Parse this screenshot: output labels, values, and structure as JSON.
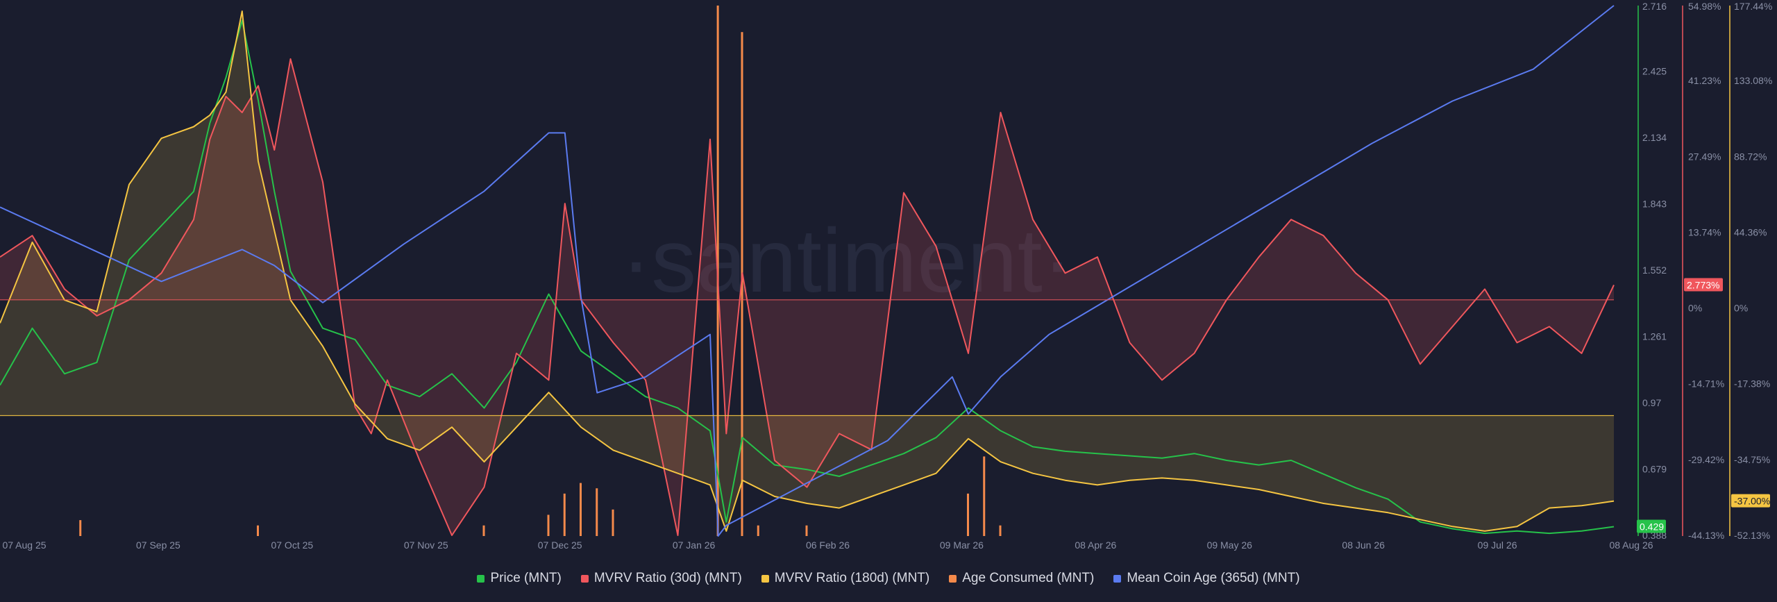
{
  "watermark": "·santiment·",
  "legend": [
    {
      "label": "Price (MNT)",
      "color": "#26c24a",
      "icon": "square"
    },
    {
      "label": "MVRV Ratio (30d) (MNT)",
      "color": "#f0575d",
      "icon": "square"
    },
    {
      "label": "MVRV Ratio (180d) (MNT)",
      "color": "#f5c542",
      "icon": "square"
    },
    {
      "label": "Age Consumed (MNT)",
      "color": "#f58a4b",
      "icon": "square"
    },
    {
      "label": "Mean Coin Age (365d) (MNT)",
      "color": "#5b7bf0",
      "icon": "square"
    }
  ],
  "chart_data": {
    "type": "line",
    "x_ticks": [
      "07 Aug 25",
      "07 Sep 25",
      "07 Oct 25",
      "07 Nov 25",
      "07 Dec 25",
      "07 Jan 26",
      "06 Feb 26",
      "09 Mar 26",
      "08 Apr 26",
      "09 May 26",
      "08 Jun 26",
      "09 Jul 26",
      "08 Aug 26"
    ],
    "axes": {
      "price": {
        "ticks": [
          "2.716",
          "2.425",
          "2.134",
          "1.843",
          "1.552",
          "1.261",
          "0.97",
          "0.679",
          "0.388"
        ],
        "ylim": [
          0.388,
          2.716
        ],
        "last_value": "0.429",
        "color": "#26c24a"
      },
      "mvrv30": {
        "ticks": [
          "54.98%",
          "41.23%",
          "27.49%",
          "13.74%",
          "0%",
          "-14.71%",
          "-29.42%",
          "-44.13%"
        ],
        "ylim": [
          -44.13,
          54.98
        ],
        "last_value": "2.773%",
        "color": "#f0575d"
      },
      "mvrv180": {
        "ticks": [
          "177.44%",
          "133.08%",
          "88.72%",
          "44.36%",
          "0%",
          "-17.38%",
          "-34.75%",
          "-52.13%"
        ],
        "ylim": [
          -52.13,
          177.44
        ],
        "last_value": "-37.00%",
        "color": "#f5c542"
      }
    },
    "series": [
      {
        "name": "Price (MNT)",
        "axis": "price",
        "color": "#26c24a",
        "x": [
          0,
          0.02,
          0.04,
          0.06,
          0.08,
          0.1,
          0.12,
          0.13,
          0.14,
          0.15,
          0.16,
          0.17,
          0.18,
          0.2,
          0.22,
          0.24,
          0.26,
          0.28,
          0.3,
          0.32,
          0.34,
          0.36,
          0.38,
          0.4,
          0.42,
          0.44,
          0.45,
          0.46,
          0.48,
          0.5,
          0.52,
          0.54,
          0.56,
          0.58,
          0.6,
          0.62,
          0.64,
          0.66,
          0.68,
          0.7,
          0.72,
          0.74,
          0.76,
          0.78,
          0.8,
          0.82,
          0.84,
          0.86,
          0.88,
          0.9,
          0.92,
          0.94,
          0.96,
          0.98,
          1.0
        ],
        "y": [
          1.05,
          1.3,
          1.1,
          1.15,
          1.6,
          1.75,
          1.9,
          2.2,
          2.4,
          2.65,
          2.3,
          1.9,
          1.55,
          1.3,
          1.25,
          1.05,
          1.0,
          1.1,
          0.95,
          1.15,
          1.45,
          1.2,
          1.1,
          1.0,
          0.95,
          0.85,
          0.45,
          0.82,
          0.7,
          0.68,
          0.65,
          0.7,
          0.75,
          0.82,
          0.95,
          0.85,
          0.78,
          0.76,
          0.75,
          0.74,
          0.73,
          0.75,
          0.72,
          0.7,
          0.72,
          0.66,
          0.6,
          0.55,
          0.45,
          0.42,
          0.4,
          0.41,
          0.4,
          0.41,
          0.429
        ]
      },
      {
        "name": "MVRV Ratio (30d) (MNT)",
        "axis": "mvrv30",
        "color": "#f0575d",
        "x": [
          0,
          0.02,
          0.04,
          0.06,
          0.08,
          0.1,
          0.12,
          0.13,
          0.14,
          0.15,
          0.16,
          0.17,
          0.18,
          0.2,
          0.22,
          0.23,
          0.24,
          0.26,
          0.28,
          0.3,
          0.32,
          0.34,
          0.35,
          0.36,
          0.38,
          0.4,
          0.42,
          0.44,
          0.45,
          0.46,
          0.48,
          0.5,
          0.52,
          0.54,
          0.56,
          0.58,
          0.6,
          0.62,
          0.64,
          0.66,
          0.68,
          0.7,
          0.72,
          0.74,
          0.76,
          0.78,
          0.8,
          0.82,
          0.84,
          0.86,
          0.88,
          0.9,
          0.92,
          0.94,
          0.96,
          0.98,
          1.0
        ],
        "y": [
          8,
          12,
          2,
          -3,
          0,
          5,
          15,
          30,
          38,
          35,
          40,
          28,
          45,
          22,
          -20,
          -25,
          -15,
          -30,
          -44,
          -35,
          -10,
          -15,
          18,
          0,
          -8,
          -15,
          -44,
          30,
          -25,
          5,
          -30,
          -35,
          -25,
          -28,
          20,
          10,
          -10,
          35,
          15,
          5,
          8,
          -8,
          -15,
          -10,
          0,
          8,
          15,
          12,
          5,
          0,
          -12,
          -5,
          2,
          -8,
          -5,
          -10,
          2.773
        ]
      },
      {
        "name": "MVRV Ratio (180d) (MNT)",
        "axis": "mvrv180",
        "color": "#f5c542",
        "x": [
          0,
          0.02,
          0.04,
          0.06,
          0.08,
          0.1,
          0.12,
          0.13,
          0.14,
          0.15,
          0.16,
          0.17,
          0.18,
          0.2,
          0.22,
          0.24,
          0.26,
          0.28,
          0.3,
          0.32,
          0.34,
          0.36,
          0.38,
          0.4,
          0.42,
          0.44,
          0.45,
          0.46,
          0.48,
          0.5,
          0.52,
          0.54,
          0.56,
          0.58,
          0.6,
          0.62,
          0.64,
          0.66,
          0.68,
          0.7,
          0.72,
          0.74,
          0.76,
          0.78,
          0.8,
          0.82,
          0.84,
          0.86,
          0.88,
          0.9,
          0.92,
          0.94,
          0.96,
          0.98,
          1.0
        ],
        "y": [
          40,
          75,
          50,
          45,
          100,
          120,
          125,
          130,
          140,
          175,
          110,
          80,
          50,
          30,
          5,
          -10,
          -15,
          -5,
          -20,
          -5,
          10,
          -5,
          -15,
          -20,
          -25,
          -30,
          -50,
          -28,
          -35,
          -38,
          -40,
          -35,
          -30,
          -25,
          -10,
          -20,
          -25,
          -28,
          -30,
          -28,
          -27,
          -28,
          -30,
          -32,
          -35,
          -38,
          -40,
          -42,
          -45,
          -48,
          -50,
          -48,
          -40,
          -39,
          -37.0
        ]
      },
      {
        "name": "Mean Coin Age (365d) (MNT)",
        "axis": "age",
        "color": "#5b7bf0",
        "x": [
          0,
          0.05,
          0.1,
          0.15,
          0.17,
          0.2,
          0.25,
          0.3,
          0.34,
          0.35,
          0.36,
          0.37,
          0.4,
          0.44,
          0.445,
          0.45,
          0.5,
          0.55,
          0.59,
          0.6,
          0.62,
          0.65,
          0.7,
          0.75,
          0.8,
          0.85,
          0.9,
          0.95,
          1.0
        ],
        "y": [
          0.62,
          0.55,
          0.48,
          0.54,
          0.51,
          0.44,
          0.55,
          0.65,
          0.76,
          0.76,
          0.45,
          0.27,
          0.3,
          0.38,
          0.0,
          0.02,
          0.1,
          0.18,
          0.3,
          0.23,
          0.3,
          0.38,
          0.47,
          0.56,
          0.65,
          0.74,
          0.82,
          0.88,
          1.0
        ]
      },
      {
        "name": "Age Consumed (MNT)",
        "axis": "age_consumed",
        "type": "bar",
        "color": "#f58a4b",
        "x": [
          0.05,
          0.16,
          0.3,
          0.34,
          0.35,
          0.36,
          0.37,
          0.38,
          0.445,
          0.46,
          0.47,
          0.5,
          0.6,
          0.61,
          0.62
        ],
        "y": [
          0.03,
          0.02,
          0.02,
          0.04,
          0.08,
          0.1,
          0.09,
          0.05,
          1.0,
          0.95,
          0.02,
          0.02,
          0.08,
          0.15,
          0.02
        ]
      }
    ],
    "reference_lines": [
      {
        "axis": "mvrv30",
        "value": 0,
        "color": "#f0575d"
      },
      {
        "axis": "mvrv180",
        "value": 0,
        "color": "#f5c542"
      }
    ],
    "grid": false,
    "legend_position": "bottom-center"
  }
}
